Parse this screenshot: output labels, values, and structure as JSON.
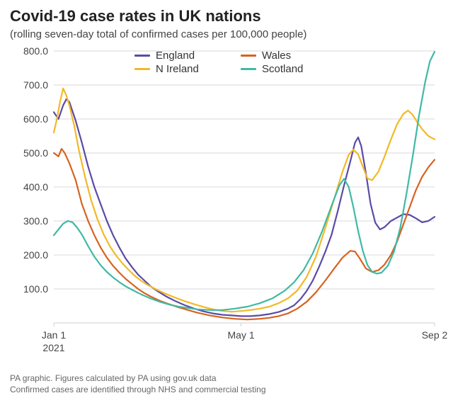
{
  "title": "Covid-19 case rates in UK nations",
  "subtitle": "(rolling seven-day total of confirmed cases per 100,000 people)",
  "footer_line1": "PA graphic. Figures calculated by PA using gov.uk data",
  "footer_line2": "Confirmed cases are identified through NHS and commercial testing",
  "chart": {
    "type": "line",
    "background_color": "#ffffff",
    "grid_color": "#d9d9d9",
    "axis_color": "#cfcfcf",
    "text_color": "#444444",
    "title_fontsize": 22,
    "subtitle_fontsize": 15,
    "label_fontsize": 14,
    "footer_fontsize": 12,
    "line_width": 2.2,
    "xlim": [
      0,
      244
    ],
    "ylim": [
      0,
      800
    ],
    "ytick_step": 100,
    "yticks": [
      100.0,
      200.0,
      300.0,
      400.0,
      500.0,
      600.0,
      700.0,
      800.0
    ],
    "xticks": [
      {
        "pos": 0,
        "label": "Jan 1",
        "sublabel": "2021"
      },
      {
        "pos": 120,
        "label": "May 1"
      },
      {
        "pos": 244,
        "label": "Sep 2"
      }
    ],
    "legend": {
      "rows": [
        [
          "england",
          "wales"
        ],
        [
          "nireland",
          "scotland"
        ]
      ]
    },
    "series": {
      "england": {
        "label": "England",
        "color": "#5a4ba6",
        "points": [
          [
            0,
            620
          ],
          [
            3,
            600
          ],
          [
            6,
            640
          ],
          [
            8,
            658
          ],
          [
            10,
            650
          ],
          [
            14,
            595
          ],
          [
            18,
            530
          ],
          [
            22,
            460
          ],
          [
            26,
            400
          ],
          [
            30,
            350
          ],
          [
            34,
            300
          ],
          [
            38,
            258
          ],
          [
            42,
            222
          ],
          [
            46,
            190
          ],
          [
            50,
            165
          ],
          [
            54,
            142
          ],
          [
            58,
            125
          ],
          [
            62,
            108
          ],
          [
            66,
            95
          ],
          [
            72,
            78
          ],
          [
            78,
            64
          ],
          [
            84,
            52
          ],
          [
            90,
            42
          ],
          [
            96,
            34
          ],
          [
            102,
            28
          ],
          [
            108,
            24
          ],
          [
            114,
            22
          ],
          [
            120,
            20
          ],
          [
            126,
            20
          ],
          [
            132,
            22
          ],
          [
            138,
            26
          ],
          [
            144,
            32
          ],
          [
            150,
            42
          ],
          [
            154,
            52
          ],
          [
            158,
            70
          ],
          [
            162,
            94
          ],
          [
            166,
            125
          ],
          [
            170,
            165
          ],
          [
            174,
            210
          ],
          [
            178,
            260
          ],
          [
            182,
            330
          ],
          [
            186,
            405
          ],
          [
            190,
            475
          ],
          [
            193,
            530
          ],
          [
            195,
            546
          ],
          [
            197,
            520
          ],
          [
            200,
            440
          ],
          [
            203,
            350
          ],
          [
            206,
            295
          ],
          [
            209,
            275
          ],
          [
            212,
            282
          ],
          [
            216,
            300
          ],
          [
            220,
            310
          ],
          [
            224,
            320
          ],
          [
            228,
            318
          ],
          [
            232,
            308
          ],
          [
            236,
            296
          ],
          [
            240,
            300
          ],
          [
            244,
            312
          ]
        ]
      },
      "wales": {
        "label": "Wales",
        "color": "#d8621f",
        "points": [
          [
            0,
            500
          ],
          [
            3,
            490
          ],
          [
            5,
            512
          ],
          [
            7,
            500
          ],
          [
            10,
            470
          ],
          [
            14,
            420
          ],
          [
            18,
            350
          ],
          [
            22,
            300
          ],
          [
            26,
            258
          ],
          [
            30,
            222
          ],
          [
            34,
            192
          ],
          [
            38,
            168
          ],
          [
            42,
            148
          ],
          [
            46,
            130
          ],
          [
            50,
            115
          ],
          [
            54,
            100
          ],
          [
            58,
            88
          ],
          [
            62,
            78
          ],
          [
            68,
            65
          ],
          [
            74,
            55
          ],
          [
            80,
            46
          ],
          [
            86,
            38
          ],
          [
            92,
            30
          ],
          [
            100,
            22
          ],
          [
            108,
            16
          ],
          [
            116,
            12
          ],
          [
            124,
            10
          ],
          [
            132,
            12
          ],
          [
            138,
            15
          ],
          [
            144,
            20
          ],
          [
            150,
            28
          ],
          [
            156,
            42
          ],
          [
            162,
            62
          ],
          [
            168,
            90
          ],
          [
            174,
            125
          ],
          [
            180,
            162
          ],
          [
            185,
            192
          ],
          [
            190,
            212
          ],
          [
            193,
            210
          ],
          [
            196,
            190
          ],
          [
            200,
            160
          ],
          [
            204,
            150
          ],
          [
            208,
            155
          ],
          [
            212,
            172
          ],
          [
            216,
            200
          ],
          [
            220,
            240
          ],
          [
            224,
            290
          ],
          [
            228,
            340
          ],
          [
            232,
            390
          ],
          [
            236,
            430
          ],
          [
            240,
            458
          ],
          [
            244,
            480
          ]
        ]
      },
      "nireland": {
        "label": "N Ireland",
        "color": "#f2b927",
        "points": [
          [
            0,
            560
          ],
          [
            2,
            600
          ],
          [
            4,
            650
          ],
          [
            6,
            690
          ],
          [
            8,
            670
          ],
          [
            10,
            640
          ],
          [
            13,
            582
          ],
          [
            16,
            510
          ],
          [
            20,
            430
          ],
          [
            24,
            360
          ],
          [
            28,
            305
          ],
          [
            32,
            260
          ],
          [
            36,
            225
          ],
          [
            40,
            198
          ],
          [
            44,
            175
          ],
          [
            48,
            156
          ],
          [
            52,
            138
          ],
          [
            56,
            124
          ],
          [
            60,
            112
          ],
          [
            66,
            98
          ],
          [
            72,
            85
          ],
          [
            78,
            74
          ],
          [
            84,
            64
          ],
          [
            90,
            55
          ],
          [
            96,
            47
          ],
          [
            102,
            40
          ],
          [
            108,
            35
          ],
          [
            114,
            33
          ],
          [
            120,
            35
          ],
          [
            126,
            38
          ],
          [
            132,
            42
          ],
          [
            138,
            48
          ],
          [
            144,
            58
          ],
          [
            150,
            72
          ],
          [
            156,
            95
          ],
          [
            162,
            135
          ],
          [
            168,
            195
          ],
          [
            174,
            280
          ],
          [
            180,
            370
          ],
          [
            185,
            445
          ],
          [
            189,
            495
          ],
          [
            192,
            510
          ],
          [
            195,
            496
          ],
          [
            198,
            460
          ],
          [
            201,
            425
          ],
          [
            204,
            420
          ],
          [
            208,
            445
          ],
          [
            212,
            490
          ],
          [
            216,
            540
          ],
          [
            220,
            585
          ],
          [
            224,
            615
          ],
          [
            227,
            625
          ],
          [
            230,
            612
          ],
          [
            233,
            590
          ],
          [
            236,
            570
          ],
          [
            240,
            550
          ],
          [
            244,
            540
          ]
        ]
      },
      "scotland": {
        "label": "Scotland",
        "color": "#3fb9a5",
        "points": [
          [
            0,
            258
          ],
          [
            3,
            275
          ],
          [
            6,
            292
          ],
          [
            9,
            300
          ],
          [
            12,
            296
          ],
          [
            15,
            280
          ],
          [
            18,
            260
          ],
          [
            22,
            226
          ],
          [
            26,
            195
          ],
          [
            30,
            170
          ],
          [
            34,
            150
          ],
          [
            38,
            134
          ],
          [
            42,
            120
          ],
          [
            46,
            108
          ],
          [
            50,
            98
          ],
          [
            56,
            84
          ],
          [
            62,
            72
          ],
          [
            68,
            62
          ],
          [
            74,
            54
          ],
          [
            80,
            48
          ],
          [
            86,
            44
          ],
          [
            92,
            40
          ],
          [
            100,
            38
          ],
          [
            108,
            38
          ],
          [
            116,
            42
          ],
          [
            124,
            48
          ],
          [
            132,
            58
          ],
          [
            140,
            72
          ],
          [
            148,
            95
          ],
          [
            154,
            120
          ],
          [
            160,
            155
          ],
          [
            166,
            205
          ],
          [
            172,
            270
          ],
          [
            178,
            345
          ],
          [
            183,
            405
          ],
          [
            186,
            424
          ],
          [
            189,
            400
          ],
          [
            192,
            340
          ],
          [
            195,
            270
          ],
          [
            198,
            212
          ],
          [
            201,
            170
          ],
          [
            204,
            150
          ],
          [
            207,
            145
          ],
          [
            210,
            148
          ],
          [
            214,
            168
          ],
          [
            218,
            210
          ],
          [
            222,
            280
          ],
          [
            226,
            380
          ],
          [
            230,
            490
          ],
          [
            234,
            610
          ],
          [
            238,
            710
          ],
          [
            241,
            770
          ],
          [
            244,
            798
          ]
        ]
      }
    }
  }
}
